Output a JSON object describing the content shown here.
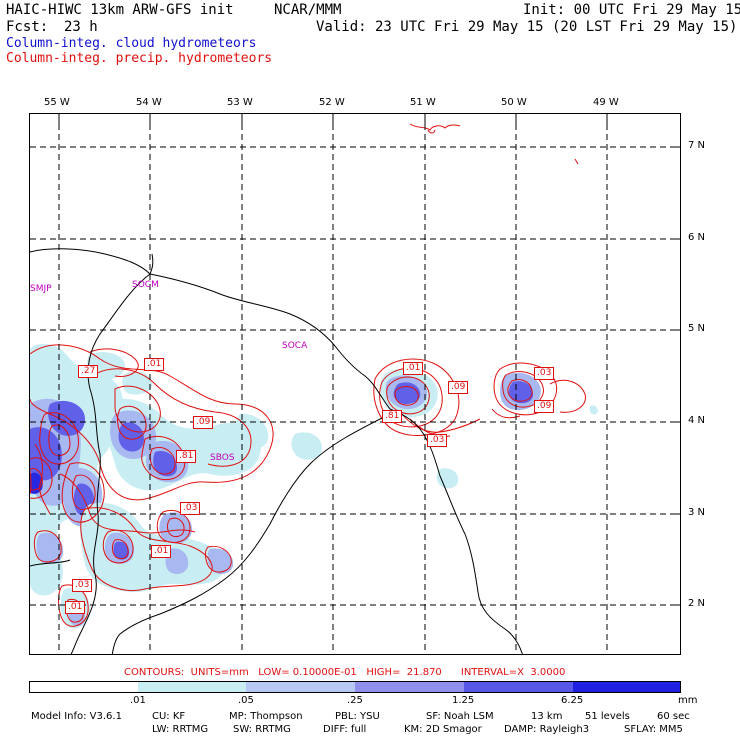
{
  "header": {
    "model": "HAIC-HIWC 13km ARW-GFS init",
    "org": "NCAR/MMM",
    "init": "Init: 00 UTC Fri 29 May 15",
    "fcst_label": "Fcst:",
    "fcst_value": "23 h",
    "valid": "Valid: 23 UTC Fri 29 May 15 (20 LST Fri 29 May 15)",
    "legend_cloud": "Column-integ. cloud hydrometeors",
    "legend_precip": "Column-integ. precip. hydrometeors"
  },
  "map": {
    "lon_labels": [
      "55 W",
      "54 W",
      "53 W",
      "52 W",
      "51 W",
      "50 W",
      "49 W"
    ],
    "lat_labels": [
      "7 N",
      "6 N",
      "5 N",
      "4 N",
      "3 N",
      "2 N"
    ],
    "stations": [
      "SMJP",
      "SOCM",
      "SOCA",
      "SBOS"
    ],
    "contour_labels": [
      ".01",
      ".27",
      ".09",
      ".81",
      ".03",
      ".01",
      ".03",
      ".01",
      ".01",
      ".09",
      ".81",
      ".03",
      ".03",
      ".09"
    ],
    "colors": {
      "cloud_light": "#c8eef4",
      "cloud_mid": "#a8b8f0",
      "cloud_dark": "#6060e8",
      "cloud_core": "#2828e0",
      "precip_line": "#e01010",
      "coast": "#000000",
      "station": "#c000c0"
    }
  },
  "footer": {
    "contours_text": "CONTOURS:  UNITS=mm   LOW= 0.10000E-01   HIGH=  21.870      INTERVAL=X  3.0000",
    "scale_ticks": [
      ".01",
      ".05",
      ".25",
      "1.25",
      "6.25"
    ],
    "scale_unit": "mm",
    "scale_colors": [
      "#ffffff",
      "#c8eef4",
      "#b8c8f4",
      "#9090ec",
      "#5858e8",
      "#2020e0"
    ],
    "info_line1": [
      "Model Info: V3.6.1",
      "CU: KF",
      "MP: Thompson",
      "PBL: YSU",
      "SF: Noah LSM",
      "13 km",
      "51 levels",
      "60 sec"
    ],
    "info_line2": [
      "LW: RRTMG",
      "SW: RRTMG",
      "DIFF: full",
      "KM: 2D Smagor",
      "DAMP: Rayleigh3",
      "SFLAY: MM5"
    ]
  }
}
